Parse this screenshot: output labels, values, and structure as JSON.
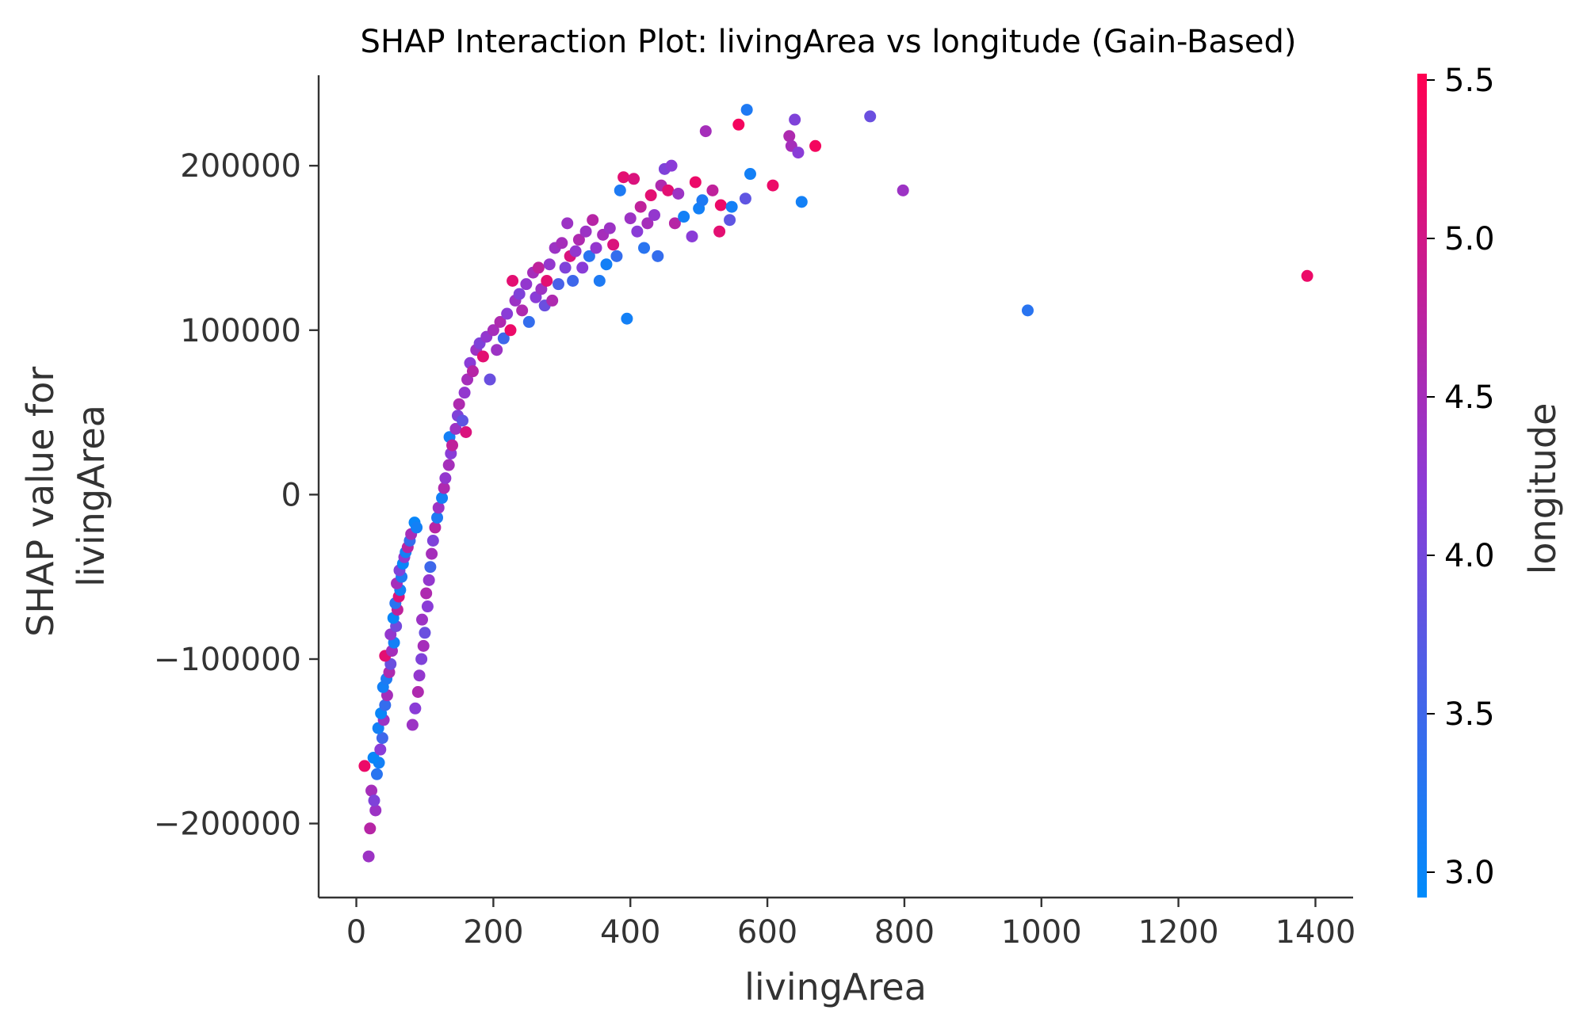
{
  "chart_data": {
    "type": "scatter",
    "title": "SHAP Interaction Plot: livingArea vs longitude (Gain-Based)",
    "xlabel": "livingArea",
    "ylabel": [
      "SHAP value for",
      "livingArea"
    ],
    "xlim": [
      -55,
      1455
    ],
    "ylim": [
      -245000,
      255000
    ],
    "xticks": [
      0,
      200,
      400,
      600,
      800,
      1000,
      1200,
      1400
    ],
    "xtick_labels": [
      "0",
      "200",
      "400",
      "600",
      "800",
      "1000",
      "1200",
      "1400"
    ],
    "yticks": [
      -200000,
      -100000,
      0,
      100000,
      200000
    ],
    "ytick_labels": [
      "−200000",
      "−100000",
      "0",
      "100000",
      "200000"
    ],
    "grid": false,
    "colorbar": {
      "label": "longitude",
      "range": [
        2.92,
        5.52
      ],
      "ticks": [
        3.0,
        3.5,
        4.0,
        4.5,
        5.0,
        5.5
      ],
      "tick_labels": [
        "3.0",
        "3.5",
        "4.0",
        "4.5",
        "5.0",
        "5.5"
      ],
      "colors": [
        "#008bfb",
        "#8c3bd6",
        "#ff0052"
      ]
    },
    "points": [
      [
        18,
        -220000,
        4.4
      ],
      [
        20,
        -203000,
        4.7
      ],
      [
        12,
        -165000,
        5.3
      ],
      [
        22,
        -180000,
        4.5
      ],
      [
        28,
        -192000,
        4.4
      ],
      [
        26,
        -186000,
        4.1
      ],
      [
        30,
        -170000,
        3.3
      ],
      [
        33,
        -163000,
        3.1
      ],
      [
        25,
        -160000,
        3.0
      ],
      [
        35,
        -155000,
        4.2
      ],
      [
        38,
        -148000,
        3.5
      ],
      [
        32,
        -142000,
        3.1
      ],
      [
        40,
        -137000,
        4.4
      ],
      [
        36,
        -133000,
        3.0
      ],
      [
        42,
        -128000,
        3.4
      ],
      [
        45,
        -122000,
        4.5
      ],
      [
        39,
        -117000,
        3.1
      ],
      [
        44,
        -112000,
        3.2
      ],
      [
        48,
        -108000,
        4.6
      ],
      [
        50,
        -103000,
        3.9
      ],
      [
        42,
        -98000,
        5.2
      ],
      [
        52,
        -95000,
        4.5
      ],
      [
        55,
        -90000,
        3.1
      ],
      [
        50,
        -85000,
        4.3
      ],
      [
        58,
        -80000,
        4.0
      ],
      [
        54,
        -75000,
        3.0
      ],
      [
        60,
        -70000,
        4.8
      ],
      [
        57,
        -66000,
        3.3
      ],
      [
        62,
        -62000,
        5.1
      ],
      [
        64,
        -58000,
        3.1
      ],
      [
        59,
        -54000,
        4.5
      ],
      [
        66,
        -50000,
        3.2
      ],
      [
        63,
        -46000,
        4.1
      ],
      [
        68,
        -42000,
        3.0
      ],
      [
        70,
        -38000,
        4.3
      ],
      [
        72,
        -35000,
        3.1
      ],
      [
        75,
        -32000,
        4.7
      ],
      [
        85,
        -17000,
        3.0
      ],
      [
        78,
        -28000,
        3.4
      ],
      [
        80,
        -24000,
        4.5
      ],
      [
        88,
        -20000,
        3.1
      ],
      [
        82,
        -140000,
        4.4
      ],
      [
        86,
        -130000,
        4.2
      ],
      [
        90,
        -120000,
        4.6
      ],
      [
        92,
        -110000,
        4.3
      ],
      [
        95,
        -100000,
        4.1
      ],
      [
        98,
        -92000,
        4.5
      ],
      [
        100,
        -84000,
        3.9
      ],
      [
        96,
        -76000,
        4.4
      ],
      [
        104,
        -68000,
        4.2
      ],
      [
        102,
        -60000,
        4.6
      ],
      [
        106,
        -52000,
        4.3
      ],
      [
        108,
        -44000,
        3.5
      ],
      [
        110,
        -36000,
        4.5
      ],
      [
        112,
        -28000,
        4.1
      ],
      [
        115,
        -20000,
        4.7
      ],
      [
        118,
        -14000,
        3.2
      ],
      [
        120,
        -8000,
        4.4
      ],
      [
        125,
        -2000,
        3.1
      ],
      [
        128,
        4000,
        4.6
      ],
      [
        130,
        10000,
        4.3
      ],
      [
        135,
        18000,
        4.5
      ],
      [
        138,
        25000,
        4.2
      ],
      [
        136,
        35000,
        3.1
      ],
      [
        140,
        30000,
        4.8
      ],
      [
        145,
        40000,
        4.4
      ],
      [
        148,
        48000,
        4.1
      ],
      [
        150,
        55000,
        4.6
      ],
      [
        155,
        45000,
        3.8
      ],
      [
        158,
        62000,
        4.3
      ],
      [
        160,
        38000,
        5.1
      ],
      [
        162,
        70000,
        4.5
      ],
      [
        166,
        80000,
        4.2
      ],
      [
        170,
        75000,
        4.7
      ],
      [
        175,
        88000,
        4.4
      ],
      [
        180,
        92000,
        4.1
      ],
      [
        185,
        84000,
        5.2
      ],
      [
        190,
        96000,
        4.3
      ],
      [
        195,
        70000,
        3.9
      ],
      [
        200,
        100000,
        4.5
      ],
      [
        205,
        88000,
        4.4
      ],
      [
        210,
        105000,
        4.6
      ],
      [
        215,
        95000,
        3.5
      ],
      [
        220,
        110000,
        4.2
      ],
      [
        225,
        100000,
        5.3
      ],
      [
        228,
        130000,
        5.2
      ],
      [
        232,
        118000,
        4.4
      ],
      [
        238,
        122000,
        4.1
      ],
      [
        242,
        112000,
        4.6
      ],
      [
        248,
        128000,
        4.3
      ],
      [
        252,
        105000,
        3.4
      ],
      [
        258,
        135000,
        4.5
      ],
      [
        262,
        120000,
        4.2
      ],
      [
        266,
        138000,
        4.8
      ],
      [
        270,
        125000,
        4.4
      ],
      [
        275,
        115000,
        3.9
      ],
      [
        278,
        130000,
        5.2
      ],
      [
        282,
        140000,
        4.3
      ],
      [
        286,
        118000,
        4.6
      ],
      [
        290,
        150000,
        4.4
      ],
      [
        295,
        128000,
        3.6
      ],
      [
        300,
        153000,
        4.5
      ],
      [
        305,
        138000,
        4.1
      ],
      [
        308,
        165000,
        4.4
      ],
      [
        312,
        145000,
        5.1
      ],
      [
        316,
        130000,
        3.5
      ],
      [
        320,
        148000,
        4.3
      ],
      [
        325,
        155000,
        4.6
      ],
      [
        330,
        138000,
        4.2
      ],
      [
        335,
        160000,
        4.4
      ],
      [
        340,
        145000,
        3.3
      ],
      [
        345,
        167000,
        4.7
      ],
      [
        350,
        150000,
        4.3
      ],
      [
        355,
        130000,
        3.2
      ],
      [
        360,
        158000,
        4.5
      ],
      [
        365,
        140000,
        3.1
      ],
      [
        370,
        162000,
        4.4
      ],
      [
        375,
        152000,
        5.1
      ],
      [
        380,
        145000,
        3.4
      ],
      [
        385,
        185000,
        3.2
      ],
      [
        390,
        193000,
        5.2
      ],
      [
        395,
        107000,
        3.1
      ],
      [
        400,
        168000,
        4.4
      ],
      [
        405,
        192000,
        5.1
      ],
      [
        410,
        160000,
        4.2
      ],
      [
        415,
        175000,
        4.8
      ],
      [
        420,
        150000,
        3.3
      ],
      [
        425,
        165000,
        4.5
      ],
      [
        430,
        182000,
        5.2
      ],
      [
        435,
        170000,
        4.3
      ],
      [
        440,
        145000,
        3.4
      ],
      [
        445,
        188000,
        4.6
      ],
      [
        450,
        198000,
        4.1
      ],
      [
        455,
        185000,
        5.2
      ],
      [
        460,
        200000,
        4.2
      ],
      [
        465,
        165000,
        4.7
      ],
      [
        470,
        183000,
        4.4
      ],
      [
        478,
        169000,
        3.1
      ],
      [
        490,
        157000,
        4.2
      ],
      [
        495,
        190000,
        5.3
      ],
      [
        500,
        174000,
        3.1
      ],
      [
        505,
        179000,
        3.2
      ],
      [
        510,
        221000,
        4.5
      ],
      [
        520,
        185000,
        4.8
      ],
      [
        530,
        160000,
        5.2
      ],
      [
        532,
        176000,
        5.3
      ],
      [
        545,
        167000,
        3.8
      ],
      [
        548,
        175000,
        3.1
      ],
      [
        558,
        225000,
        5.4
      ],
      [
        568,
        180000,
        3.8
      ],
      [
        570,
        234000,
        3.2
      ],
      [
        575,
        195000,
        3.1
      ],
      [
        608,
        188000,
        5.3
      ],
      [
        632,
        218000,
        4.6
      ],
      [
        635,
        212000,
        4.5
      ],
      [
        640,
        228000,
        4.1
      ],
      [
        645,
        208000,
        4.2
      ],
      [
        650,
        178000,
        3.1
      ],
      [
        670,
        212000,
        5.4
      ],
      [
        750,
        230000,
        3.9
      ],
      [
        798,
        185000,
        4.4
      ],
      [
        980,
        112000,
        3.3
      ],
      [
        1388,
        133000,
        5.3
      ]
    ]
  }
}
